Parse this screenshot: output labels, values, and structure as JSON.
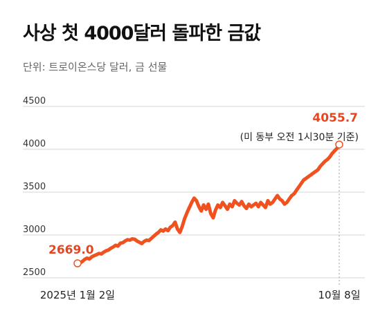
{
  "chart_data": {
    "type": "line",
    "title": "사상 첫 4000달러 돌파한 금값",
    "subtitle": "단위: 트로이온스당 달러, 금 선물",
    "ylim": [
      2500,
      4500
    ],
    "y_ticks": [
      "4500",
      "4000",
      "3500",
      "3000",
      "2500"
    ],
    "x_labels": {
      "start": "2025년 1월 2일",
      "end": "10월 8일"
    },
    "series_color": "#f0521f",
    "annotations": {
      "start_value": "2669.0",
      "end_value": "4055.7",
      "end_note": "(미 동부 오전 1시30분 기준)"
    },
    "series": [
      {
        "values": [
          2669.0,
          2672,
          2690,
          2715,
          2730,
          2720,
          2745,
          2760,
          2770,
          2785,
          2778,
          2800,
          2815,
          2825,
          2845,
          2860,
          2880,
          2870,
          2905,
          2910,
          2930,
          2945,
          2940,
          2955,
          2950,
          2930,
          2915,
          2900,
          2925,
          2940,
          2935,
          2960,
          2985,
          3010,
          3030,
          3060,
          3045,
          3070,
          3050,
          3090,
          3110,
          3150,
          3070,
          3030,
          3100,
          3190,
          3260,
          3320,
          3380,
          3430,
          3400,
          3330,
          3280,
          3350,
          3300,
          3360,
          3250,
          3200,
          3290,
          3350,
          3320,
          3380,
          3340,
          3300,
          3360,
          3330,
          3400,
          3370,
          3350,
          3390,
          3340,
          3310,
          3360,
          3330,
          3350,
          3370,
          3330,
          3380,
          3350,
          3320,
          3400,
          3360,
          3380,
          3420,
          3460,
          3420,
          3400,
          3360,
          3380,
          3420,
          3460,
          3480,
          3520,
          3560,
          3600,
          3640,
          3660,
          3680,
          3700,
          3720,
          3740,
          3760,
          3800,
          3830,
          3860,
          3880,
          3910,
          3950,
          3980,
          4010,
          4055.7
        ]
      }
    ]
  }
}
